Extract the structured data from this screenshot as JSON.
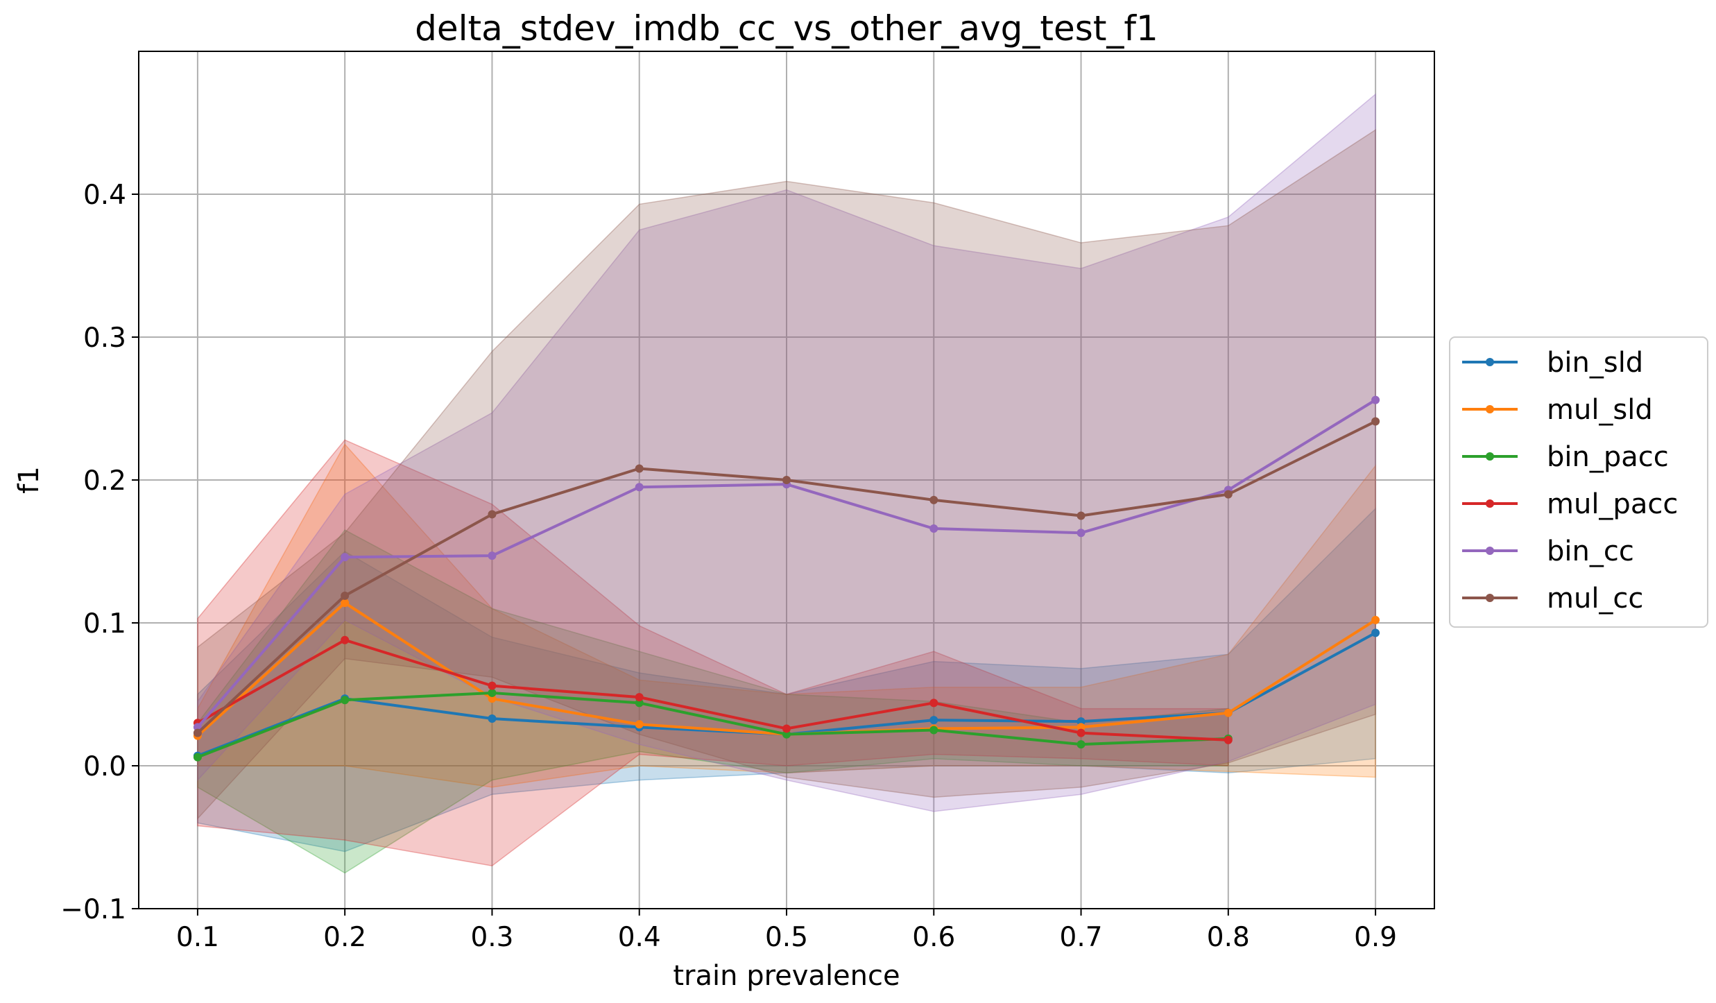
{
  "chart_data": {
    "type": "line",
    "title": "delta_stdev_imdb_cc_vs_other_avg_test_f1",
    "xlabel": "train prevalence",
    "ylabel": "f1",
    "x": [
      0.1,
      0.2,
      0.3,
      0.4,
      0.5,
      0.6,
      0.7,
      0.8,
      0.9
    ],
    "x_tick_labels": [
      "0.1",
      "0.2",
      "0.3",
      "0.4",
      "0.5",
      "0.6",
      "0.7",
      "0.8",
      "0.9"
    ],
    "y_ticks": [
      -0.1,
      0.0,
      0.1,
      0.2,
      0.3,
      0.4
    ],
    "y_tick_labels": [
      "−0.1",
      "0.0",
      "0.1",
      "0.2",
      "0.3",
      "0.4"
    ],
    "xlim": [
      0.06,
      0.94
    ],
    "ylim": [
      -0.1,
      0.5
    ],
    "grid": true,
    "legend_position": "right",
    "band_opacity": 0.25,
    "series": [
      {
        "name": "bin_sld",
        "color": "#1f77b4",
        "values": [
          0.007,
          0.047,
          0.033,
          0.027,
          0.022,
          0.032,
          0.031,
          0.037,
          0.093
        ],
        "lower": [
          -0.04,
          -0.06,
          -0.02,
          -0.01,
          -0.005,
          0.0,
          0.0,
          -0.005,
          0.005
        ],
        "upper": [
          0.05,
          0.15,
          0.09,
          0.065,
          0.05,
          0.073,
          0.068,
          0.078,
          0.18
        ]
      },
      {
        "name": "mul_sld",
        "color": "#ff7f0e",
        "values": [
          0.021,
          0.114,
          0.047,
          0.029,
          0.022,
          0.026,
          0.027,
          0.037,
          0.102
        ],
        "lower": [
          0.0,
          0.0,
          -0.015,
          0.0,
          -0.005,
          0.0,
          0.0,
          -0.004,
          -0.008
        ],
        "upper": [
          0.04,
          0.225,
          0.11,
          0.06,
          0.05,
          0.055,
          0.055,
          0.078,
          0.21
        ]
      },
      {
        "name": "bin_pacc",
        "color": "#2ca02c",
        "values": [
          0.006,
          0.046,
          0.051,
          0.044,
          0.022,
          0.025,
          0.015,
          0.019,
          null
        ],
        "lower": [
          -0.015,
          -0.075,
          -0.01,
          0.01,
          -0.005,
          0.005,
          0.0,
          0.0,
          null
        ],
        "upper": [
          0.03,
          0.165,
          0.11,
          0.08,
          0.05,
          0.045,
          0.03,
          0.04,
          null
        ]
      },
      {
        "name": "mul_pacc",
        "color": "#d62728",
        "values": [
          0.03,
          0.088,
          0.056,
          0.048,
          0.026,
          0.044,
          0.023,
          0.018,
          null
        ],
        "lower": [
          -0.042,
          -0.052,
          -0.07,
          0.008,
          0.0,
          0.008,
          0.005,
          0.0,
          null
        ],
        "upper": [
          0.103,
          0.228,
          0.183,
          0.098,
          0.05,
          0.08,
          0.04,
          0.04,
          null
        ]
      },
      {
        "name": "bin_cc",
        "color": "#9467bd",
        "values": [
          0.027,
          0.146,
          0.147,
          0.195,
          0.197,
          0.166,
          0.163,
          0.193,
          0.256
        ],
        "lower": [
          -0.01,
          0.102,
          0.048,
          0.015,
          -0.01,
          -0.032,
          -0.02,
          0.003,
          0.043
        ],
        "upper": [
          0.045,
          0.19,
          0.247,
          0.375,
          0.403,
          0.364,
          0.348,
          0.384,
          0.47
        ]
      },
      {
        "name": "mul_cc",
        "color": "#8c564b",
        "values": [
          0.023,
          0.119,
          0.176,
          0.208,
          0.2,
          0.186,
          0.175,
          0.19,
          0.241
        ],
        "lower": [
          -0.037,
          0.075,
          0.062,
          0.022,
          -0.008,
          -0.022,
          -0.015,
          0.002,
          0.036
        ],
        "upper": [
          0.083,
          0.163,
          0.29,
          0.393,
          0.409,
          0.394,
          0.366,
          0.378,
          0.445
        ]
      }
    ]
  }
}
